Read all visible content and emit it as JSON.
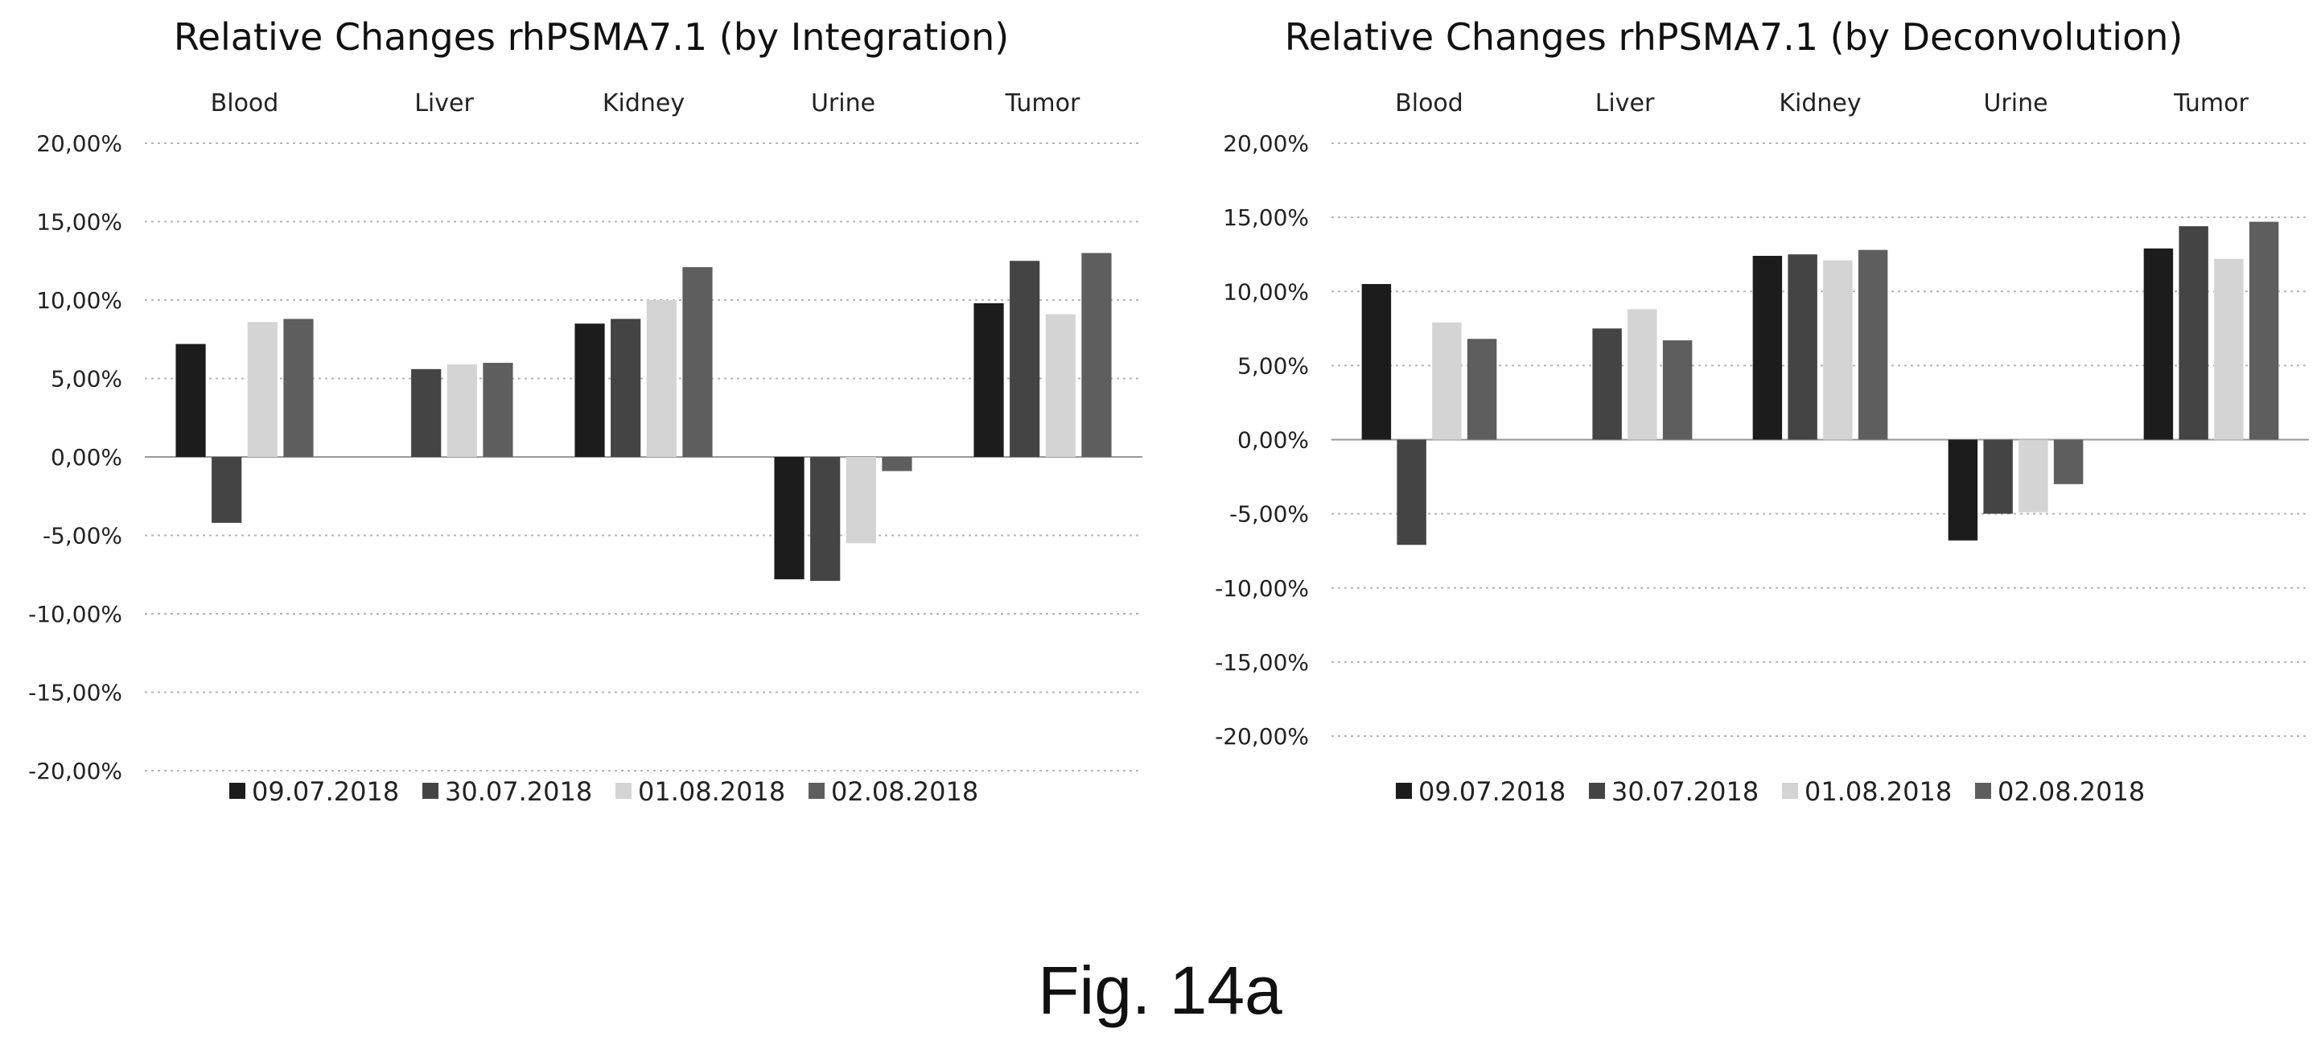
{
  "figure": {
    "caption": "Fig. 14a"
  },
  "colors": {
    "09.07.2018": "#1c1c1c",
    "30.07.2018": "#444444",
    "01.08.2018": "#d4d4d4",
    "02.08.2018": "#5e5e5e"
  },
  "chart_data": [
    {
      "type": "bar",
      "title": "Relative Changes rhPSMA7.1 (by Integration)",
      "categories": [
        "Blood",
        "Liver",
        "Kidney",
        "Urine",
        "Tumor"
      ],
      "category_axis_position": "top",
      "ylim": [
        -20,
        20
      ],
      "y_ticks": [
        20,
        15,
        10,
        5,
        0,
        -5,
        -10,
        -15,
        -20
      ],
      "y_tick_labels": [
        "20,00%",
        "15,00%",
        "10,00%",
        "5,00%",
        "0,00%",
        "-5,00%",
        "-10,00%",
        "-15,00%",
        "-20,00%"
      ],
      "grid": true,
      "legend_position": "bottom",
      "series": [
        {
          "name": "09.07.2018",
          "values": [
            7.2,
            null,
            8.5,
            -7.8,
            9.8
          ]
        },
        {
          "name": "30.07.2018",
          "values": [
            -4.2,
            5.6,
            8.8,
            -7.9,
            12.5
          ]
        },
        {
          "name": "01.08.2018",
          "values": [
            8.6,
            5.9,
            10.0,
            -5.5,
            9.1
          ]
        },
        {
          "name": "02.08.2018",
          "values": [
            8.8,
            6.0,
            12.1,
            -0.9,
            13.0
          ]
        }
      ]
    },
    {
      "type": "bar",
      "title": "Relative Changes rhPSMA7.1 (by Deconvolution)",
      "categories": [
        "Blood",
        "Liver",
        "Kidney",
        "Urine",
        "Tumor"
      ],
      "category_axis_position": "top",
      "ylim": [
        -20,
        20
      ],
      "y_ticks": [
        20,
        15,
        10,
        5,
        0,
        -5,
        -10,
        -15,
        -20
      ],
      "y_tick_labels": [
        "20,00%",
        "15,00%",
        "10,00%",
        "5,00%",
        "0,00%",
        "-5,00%",
        "-10,00%",
        "-15,00%",
        "-20,00%"
      ],
      "grid": true,
      "legend_position": "bottom",
      "series": [
        {
          "name": "09.07.2018",
          "values": [
            10.5,
            null,
            12.4,
            -6.8,
            12.9
          ]
        },
        {
          "name": "30.07.2018",
          "values": [
            -7.1,
            7.5,
            12.5,
            -5.0,
            14.4
          ]
        },
        {
          "name": "01.08.2018",
          "values": [
            7.9,
            8.8,
            12.1,
            -4.9,
            12.2
          ]
        },
        {
          "name": "02.08.2018",
          "values": [
            6.8,
            6.7,
            12.8,
            -3.0,
            14.7
          ]
        }
      ]
    }
  ]
}
